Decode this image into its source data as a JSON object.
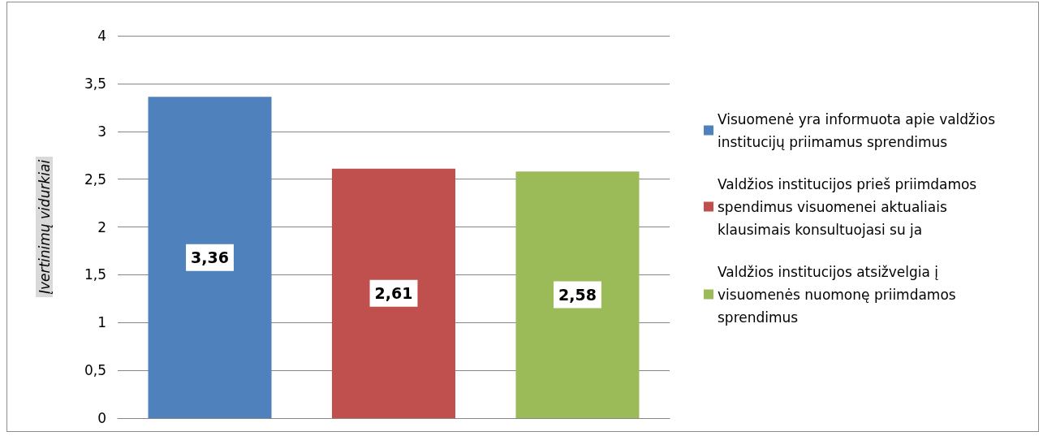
{
  "chart_data": {
    "type": "bar",
    "ylabel": "Įvertinimų vidurkiai",
    "categories": [
      null
    ],
    "series": [
      {
        "name": "Visuomenė yra informuota apie valdžios institucijų priimamus sprendimus",
        "color": "#4f81bd",
        "values": [
          3.36
        ],
        "value_labels": [
          "3,36"
        ]
      },
      {
        "name": "Valdžios institucijos prieš priimdamos spendimus visuomenei aktualiais klausimais konsultuojasi su ja",
        "color": "#c0504d",
        "values": [
          2.61
        ],
        "value_labels": [
          "2,61"
        ]
      },
      {
        "name": "Valdžios institucijos atsižvelgia į visuomenės nuomonę priimdamos sprendimus",
        "color": "#9bbb59",
        "values": [
          2.58
        ],
        "value_labels": [
          "2,58"
        ]
      }
    ],
    "ylim": [
      0,
      4
    ],
    "yticks": [
      0,
      {
        "value": 0.5,
        "label": "0,5"
      },
      1,
      {
        "value": 1.5,
        "label": "1,5"
      },
      2,
      {
        "value": 2.5,
        "label": "2,5"
      },
      3,
      {
        "value": 3.5,
        "label": "3,5"
      },
      4
    ],
    "grid": "y",
    "legend": "right"
  }
}
